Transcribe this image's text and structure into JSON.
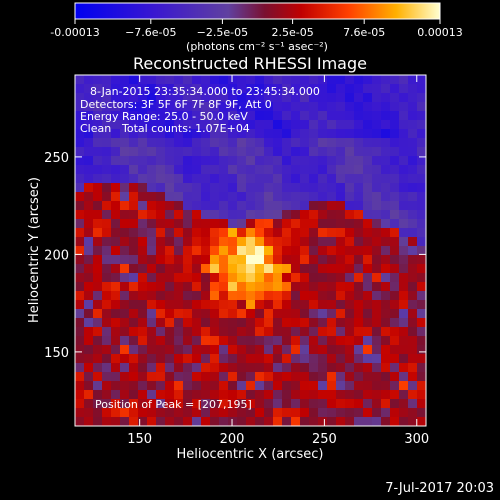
{
  "chart_data": {
    "type": "heatmap",
    "title": "Reconstructed RHESSI Image",
    "xlabel": "Heliocentric X (arcsec)",
    "ylabel": "Heliocentric Y (arcsec)",
    "xlim": [
      115,
      305
    ],
    "ylim": [
      112,
      292
    ],
    "xticks": [
      150,
      200,
      250,
      300
    ],
    "yticks": [
      150,
      200,
      250
    ],
    "colorbar": {
      "min": -0.00013,
      "max": 0.00013,
      "tick_values": [
        -0.00013,
        -7.6e-05,
        -2.5e-05,
        2.5e-05,
        7.6e-05,
        0.00013
      ],
      "tick_labels": [
        "-0.00013",
        "−7.6e-05",
        "−2.5e-05",
        "2.5e-05",
        "7.6e-05",
        "0.00013"
      ],
      "unit_label": "(photons cm⁻² s⁻¹ asec⁻²)"
    },
    "annotations": {
      "time_range": "8-Jan-2015 23:35:34.000 to 23:45:34.000",
      "detectors": "Detectors: 3F 5F 6F 7F 8F 9F, Att 0",
      "energy": "Energy Range: 25.0 - 50.0 keV",
      "clean": "Clean",
      "total_counts": "Total counts: 1.07E+04",
      "peak": "Position of Peak = [207,195]"
    },
    "peak_position": [
      207,
      195
    ]
  },
  "footer": {
    "date": "7-Jul-2017 20:03"
  },
  "colors": {
    "background": "#000000",
    "text": "#ffffff",
    "negative": "#0000ff",
    "low": "#6a40c0",
    "mid": "#e01800",
    "high": "#ffff60"
  }
}
